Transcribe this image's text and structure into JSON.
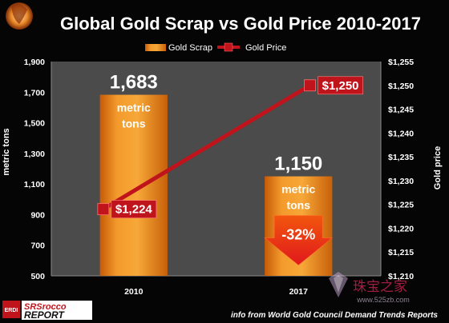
{
  "chart_data": {
    "type": "bar",
    "title": "Global Gold Scrap vs Gold Price 2010-2017",
    "categories": [
      "2010",
      "2017"
    ],
    "series": [
      {
        "name": "Gold Scrap",
        "kind": "bar",
        "axis": "left",
        "values": [
          1683,
          1150
        ],
        "labels": [
          "1,683",
          "1,150"
        ],
        "unit_label": "metric tons"
      },
      {
        "name": "Gold Price",
        "kind": "line",
        "axis": "right",
        "values": [
          1224,
          1250
        ],
        "labels": [
          "$1,224",
          "$1,250"
        ]
      }
    ],
    "ylabel_left": "metric tons",
    "ylabel_right": "Gold price",
    "ylim_left": [
      500,
      1900
    ],
    "ylim_right": [
      1210,
      1255
    ],
    "yticks_left": [
      "500",
      "700",
      "900",
      "1,100",
      "1,300",
      "1,500",
      "1,700",
      "1,900"
    ],
    "yticks_right": [
      "$1,210",
      "$1,215",
      "$1,220",
      "$1,225",
      "$1,230",
      "$1,235",
      "$1,240",
      "$1,245",
      "$1,250",
      "$1,255"
    ],
    "change_annotation": "-32%",
    "legend_position": "top-center",
    "grid": false,
    "colors": {
      "bar": "#f08a1e",
      "line": "#c0141c",
      "plot_bg": "#4b4b4b",
      "page_bg": "#050505"
    }
  },
  "footer": {
    "credit": "info from World Gold Council Demand Trends Reports",
    "logo_small": "ERDI",
    "logo_top": "SRSrocco",
    "logo_bottom": "REPORT"
  },
  "watermark": {
    "text": "珠宝之家",
    "url": "www.525zb.com"
  }
}
